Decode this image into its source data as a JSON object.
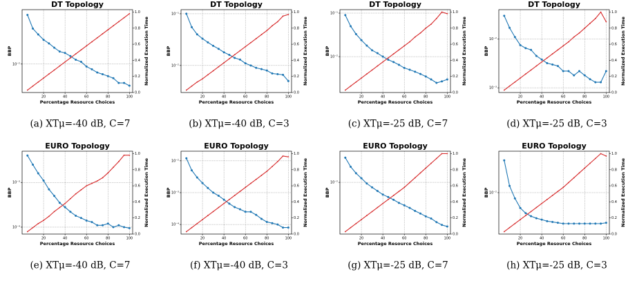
{
  "chart_data": [
    {
      "type": "line",
      "title": "DT Topology",
      "xlabel": "Percentage Resource Choices",
      "ylabel": "BBP",
      "y2label": "Normalized Execution Time",
      "caption": "(a) XTμ=-40 dB, C=7",
      "ylog": true,
      "grid": true,
      "x": [
        5,
        10,
        15,
        20,
        25,
        30,
        35,
        40,
        45,
        50,
        55,
        60,
        65,
        70,
        75,
        80,
        85,
        90,
        95,
        100
      ],
      "xlim": [
        0,
        103
      ],
      "xticks": [
        20,
        40,
        60,
        80,
        100
      ],
      "ylim": [
        0.003,
        0.1
      ],
      "yticks": [
        {
          "value": 0.01,
          "label": "10⁻²"
        }
      ],
      "y2lim": [
        0,
        1.03
      ],
      "y2ticks": [
        {
          "value": 0,
          "label": "0.0"
        },
        {
          "value": 0.2,
          "label": "0.2"
        },
        {
          "value": 0.4,
          "label": "0.4"
        },
        {
          "value": 0.6,
          "label": "0.6"
        },
        {
          "value": 0.8,
          "label": "0.8"
        },
        {
          "value": 1,
          "label": "1.0"
        }
      ],
      "series": [
        {
          "color": "#1f77b4",
          "values": [
            0.08,
            0.045,
            0.035,
            0.028,
            0.024,
            0.02,
            0.017,
            0.016,
            0.014,
            0.012,
            0.011,
            0.009,
            0.008,
            0.007,
            0.0065,
            0.006,
            0.0055,
            0.0045,
            0.0045,
            0.004
          ]
        },
        {
          "color": "#d62728",
          "axis": "y2",
          "values": [
            0.03,
            0.08,
            0.13,
            0.18,
            0.23,
            0.28,
            0.33,
            0.38,
            0.43,
            0.48,
            0.53,
            0.58,
            0.63,
            0.68,
            0.73,
            0.78,
            0.83,
            0.88,
            0.93,
            0.98
          ]
        }
      ]
    },
    {
      "type": "line",
      "title": "DT Topology",
      "xlabel": "Percentage Resource Choices",
      "ylabel": "BBP",
      "y2label": "Normalized Execution Time",
      "caption": "(b) XTμ=-40 dB, C=3",
      "ylog": true,
      "grid": true,
      "x": [
        5,
        10,
        15,
        20,
        25,
        30,
        35,
        40,
        45,
        50,
        55,
        60,
        65,
        70,
        75,
        80,
        85,
        90,
        95,
        100
      ],
      "xlim": [
        0,
        103
      ],
      "xticks": [
        20,
        40,
        60,
        80,
        100
      ],
      "ylim": [
        0.003,
        0.12
      ],
      "yticks": [
        {
          "value": 0.01,
          "label": "10⁻²"
        },
        {
          "value": 0.1,
          "label": "10⁻¹"
        }
      ],
      "y2lim": [
        0,
        1.03
      ],
      "y2ticks": [
        {
          "value": 0,
          "label": "0.0"
        },
        {
          "value": 0.2,
          "label": "0.2"
        },
        {
          "value": 0.4,
          "label": "0.4"
        },
        {
          "value": 0.6,
          "label": "0.6"
        },
        {
          "value": 0.8,
          "label": "0.8"
        },
        {
          "value": 1,
          "label": "1.0"
        }
      ],
      "series": [
        {
          "color": "#1f77b4",
          "values": [
            0.1,
            0.055,
            0.04,
            0.033,
            0.028,
            0.024,
            0.021,
            0.018,
            0.016,
            0.014,
            0.013,
            0.011,
            0.01,
            0.009,
            0.0085,
            0.008,
            0.007,
            0.0068,
            0.0066,
            0.005
          ]
        },
        {
          "color": "#d62728",
          "axis": "y2",
          "values": [
            0.03,
            0.08,
            0.13,
            0.17,
            0.22,
            0.27,
            0.32,
            0.37,
            0.42,
            0.47,
            0.52,
            0.57,
            0.62,
            0.67,
            0.72,
            0.77,
            0.83,
            0.88,
            0.95,
            0.97
          ]
        }
      ]
    },
    {
      "type": "line",
      "title": "DT Topology",
      "xlabel": "Percentage Resource Choices",
      "ylabel": "BBP",
      "y2label": "Normalized Execution Time",
      "caption": "(c) XTμ=-25 dB, C=7",
      "ylog": true,
      "grid": true,
      "x": [
        5,
        10,
        15,
        20,
        25,
        30,
        35,
        40,
        45,
        50,
        55,
        60,
        65,
        70,
        75,
        80,
        85,
        90,
        95,
        100
      ],
      "xlim": [
        0,
        103
      ],
      "xticks": [
        20,
        40,
        60,
        80,
        100
      ],
      "ylim": [
        0.0015,
        0.12
      ],
      "yticks": [
        {
          "value": 0.01,
          "label": "10⁻²"
        },
        {
          "value": 0.1,
          "label": "10⁻¹"
        }
      ],
      "y2lim": [
        0,
        1.03
      ],
      "y2ticks": [
        {
          "value": 0,
          "label": "0.0"
        },
        {
          "value": 0.2,
          "label": "0.2"
        },
        {
          "value": 0.4,
          "label": "0.4"
        },
        {
          "value": 0.6,
          "label": "0.6"
        },
        {
          "value": 0.8,
          "label": "0.8"
        },
        {
          "value": 1,
          "label": "1.0"
        }
      ],
      "series": [
        {
          "color": "#1f77b4",
          "values": [
            0.09,
            0.05,
            0.033,
            0.024,
            0.018,
            0.014,
            0.012,
            0.01,
            0.0085,
            0.0075,
            0.0065,
            0.0055,
            0.005,
            0.0045,
            0.004,
            0.0035,
            0.003,
            0.0025,
            0.0027,
            0.003
          ]
        },
        {
          "color": "#d62728",
          "axis": "y2",
          "values": [
            0.03,
            0.08,
            0.13,
            0.18,
            0.23,
            0.28,
            0.33,
            0.38,
            0.43,
            0.48,
            0.53,
            0.58,
            0.63,
            0.69,
            0.74,
            0.8,
            0.85,
            0.92,
            1.0,
            0.98
          ]
        }
      ]
    },
    {
      "type": "line",
      "title": "DT Topology",
      "xlabel": "Percentage Resource Choices",
      "ylabel": "BBP",
      "y2label": "Normalized Execution Time",
      "caption": "(d) XTμ=-25 dB, C=3",
      "ylog": true,
      "grid": true,
      "x": [
        5,
        10,
        15,
        20,
        25,
        30,
        35,
        40,
        45,
        50,
        55,
        60,
        65,
        70,
        75,
        80,
        85,
        90,
        95,
        100
      ],
      "xlim": [
        0,
        103
      ],
      "xticks": [
        20,
        40,
        60,
        80,
        100
      ],
      "ylim": [
        0.0008,
        0.04
      ],
      "yticks": [
        {
          "value": 0.001,
          "label": "10⁻³"
        },
        {
          "value": 0.01,
          "label": "10⁻²"
        }
      ],
      "y2lim": [
        0,
        1.03
      ],
      "y2ticks": [
        {
          "value": 0,
          "label": "0.0"
        },
        {
          "value": 0.2,
          "label": "0.2"
        },
        {
          "value": 0.4,
          "label": "0.4"
        },
        {
          "value": 0.6,
          "label": "0.6"
        },
        {
          "value": 0.8,
          "label": "0.8"
        },
        {
          "value": 1,
          "label": "1.0"
        }
      ],
      "series": [
        {
          "color": "#1f77b4",
          "values": [
            0.03,
            0.017,
            0.011,
            0.0075,
            0.0065,
            0.006,
            0.0045,
            0.0038,
            0.0032,
            0.003,
            0.0028,
            0.0022,
            0.0022,
            0.0018,
            0.0022,
            0.0018,
            0.0015,
            0.0013,
            0.0013,
            0.0022
          ]
        },
        {
          "color": "#d62728",
          "axis": "y2",
          "values": [
            0.03,
            0.08,
            0.13,
            0.18,
            0.23,
            0.28,
            0.33,
            0.38,
            0.43,
            0.48,
            0.53,
            0.58,
            0.63,
            0.69,
            0.74,
            0.8,
            0.86,
            0.92,
            1.0,
            0.88
          ]
        }
      ]
    },
    {
      "type": "line",
      "title": "EURO Topology",
      "xlabel": "Percentage Resource Choices",
      "ylabel": "BBP",
      "y2label": "Normalized Execution Time",
      "caption": "(e) XTμ=-40 dB, C=7",
      "ylog": true,
      "grid": true,
      "x": [
        5,
        10,
        15,
        20,
        25,
        30,
        35,
        40,
        45,
        50,
        55,
        60,
        65,
        70,
        75,
        80,
        85,
        90,
        95,
        100
      ],
      "xlim": [
        0,
        103
      ],
      "xticks": [
        20,
        40,
        60,
        80,
        100
      ],
      "ylim": [
        7e-05,
        0.005
      ],
      "yticks": [
        {
          "value": 0.0001,
          "label": "10⁻⁴"
        },
        {
          "value": 0.001,
          "label": "10⁻³"
        }
      ],
      "y2lim": [
        0,
        1.03
      ],
      "y2ticks": [
        {
          "value": 0,
          "label": "0.0"
        },
        {
          "value": 0.2,
          "label": "0.2"
        },
        {
          "value": 0.4,
          "label": "0.4"
        },
        {
          "value": 0.6,
          "label": "0.6"
        },
        {
          "value": 0.8,
          "label": "0.8"
        },
        {
          "value": 1,
          "label": "1.0"
        }
      ],
      "series": [
        {
          "color": "#1f77b4",
          "values": [
            0.004,
            0.0025,
            0.0016,
            0.0011,
            0.0007,
            0.0005,
            0.00035,
            0.00028,
            0.00022,
            0.00018,
            0.00016,
            0.00014,
            0.00013,
            0.00011,
            0.00011,
            0.00012,
            0.0001,
            0.00011,
            0.0001,
            9.5e-05
          ]
        },
        {
          "color": "#d62728",
          "axis": "y2",
          "values": [
            0.03,
            0.08,
            0.13,
            0.17,
            0.22,
            0.28,
            0.33,
            0.38,
            0.44,
            0.5,
            0.55,
            0.6,
            0.63,
            0.66,
            0.7,
            0.76,
            0.83,
            0.9,
            0.98,
            0.98
          ]
        }
      ]
    },
    {
      "type": "line",
      "title": "EURO Topology",
      "xlabel": "Percentage Resource Choices",
      "ylabel": "BBP",
      "y2label": "Normalized Execution Time",
      "caption": "(f) XTμ=-40 dB, C=3",
      "ylog": true,
      "grid": true,
      "x": [
        5,
        10,
        15,
        20,
        25,
        30,
        35,
        40,
        45,
        50,
        55,
        60,
        65,
        70,
        75,
        80,
        85,
        90,
        95,
        100
      ],
      "xlim": [
        0,
        103
      ],
      "xticks": [
        20,
        40,
        60,
        80,
        100
      ],
      "ylim": [
        5e-05,
        0.02
      ],
      "yticks": [
        {
          "value": 0.0001,
          "label": "10⁻⁴"
        },
        {
          "value": 0.001,
          "label": "10⁻³"
        },
        {
          "value": 0.01,
          "label": "10⁻²"
        }
      ],
      "y2lim": [
        0,
        1.03
      ],
      "y2ticks": [
        {
          "value": 0,
          "label": "0.0"
        },
        {
          "value": 0.2,
          "label": "0.2"
        },
        {
          "value": 0.4,
          "label": "0.4"
        },
        {
          "value": 0.6,
          "label": "0.6"
        },
        {
          "value": 0.8,
          "label": "0.8"
        },
        {
          "value": 1,
          "label": "1.0"
        }
      ],
      "series": [
        {
          "color": "#1f77b4",
          "values": [
            0.012,
            0.005,
            0.003,
            0.002,
            0.0014,
            0.001,
            0.0008,
            0.0006,
            0.00045,
            0.00035,
            0.0003,
            0.00025,
            0.00025,
            0.0002,
            0.00015,
            0.00012,
            0.00011,
            0.0001,
            8e-05,
            8e-05
          ]
        },
        {
          "color": "#d62728",
          "axis": "y2",
          "values": [
            0.03,
            0.08,
            0.13,
            0.18,
            0.23,
            0.28,
            0.33,
            0.38,
            0.43,
            0.48,
            0.53,
            0.58,
            0.63,
            0.68,
            0.73,
            0.78,
            0.84,
            0.9,
            0.97,
            0.96
          ]
        }
      ]
    },
    {
      "type": "line",
      "title": "EURO Topology",
      "xlabel": "Percentage Resource Choices",
      "ylabel": "BBP",
      "y2label": "Normalized Execution Time",
      "caption": "(g) XTμ=-25 dB, C=7",
      "ylog": true,
      "grid": true,
      "x": [
        5,
        10,
        15,
        20,
        25,
        30,
        35,
        40,
        45,
        50,
        55,
        60,
        65,
        70,
        75,
        80,
        85,
        90,
        95,
        100
      ],
      "xlim": [
        0,
        103
      ],
      "xticks": [
        20,
        40,
        60,
        80,
        100
      ],
      "ylim": [
        0.001,
        0.04
      ],
      "yticks": [
        {
          "value": 0.01,
          "label": "10⁻²"
        }
      ],
      "y2lim": [
        0,
        1.03
      ],
      "y2ticks": [
        {
          "value": 0,
          "label": "0.0"
        },
        {
          "value": 0.2,
          "label": "0.2"
        },
        {
          "value": 0.4,
          "label": "0.4"
        },
        {
          "value": 0.6,
          "label": "0.6"
        },
        {
          "value": 0.8,
          "label": "0.8"
        },
        {
          "value": 1,
          "label": "1.0"
        }
      ],
      "series": [
        {
          "color": "#1f77b4",
          "values": [
            0.03,
            0.02,
            0.015,
            0.012,
            0.0095,
            0.008,
            0.0068,
            0.0058,
            0.0052,
            0.0046,
            0.004,
            0.0036,
            0.0032,
            0.0028,
            0.0025,
            0.0022,
            0.002,
            0.0017,
            0.0015,
            0.0014
          ]
        },
        {
          "color": "#d62728",
          "axis": "y2",
          "values": [
            0.03,
            0.08,
            0.13,
            0.18,
            0.23,
            0.28,
            0.33,
            0.38,
            0.43,
            0.48,
            0.53,
            0.58,
            0.64,
            0.7,
            0.76,
            0.82,
            0.88,
            0.94,
            1.0,
            1.0
          ]
        }
      ]
    },
    {
      "type": "line",
      "title": "EURO Topology",
      "xlabel": "Percentage Resource Choices",
      "ylabel": "BBP",
      "y2label": "Normalized Execution Time",
      "caption": "(h) XTμ=-25 dB, C=3",
      "ylog": true,
      "grid": true,
      "x": [
        5,
        10,
        15,
        20,
        25,
        30,
        35,
        40,
        45,
        50,
        55,
        60,
        65,
        70,
        75,
        80,
        85,
        90,
        95,
        100
      ],
      "xlim": [
        0,
        103
      ],
      "xticks": [
        20,
        40,
        60,
        80,
        100
      ],
      "ylim": [
        0.002,
        0.05
      ],
      "yticks": [
        {
          "value": 0.01,
          "label": "10⁻²"
        }
      ],
      "y2lim": [
        0,
        1.03
      ],
      "y2ticks": [
        {
          "value": 0,
          "label": "0.0"
        },
        {
          "value": 0.2,
          "label": "0.2"
        },
        {
          "value": 0.4,
          "label": "0.4"
        },
        {
          "value": 0.6,
          "label": "0.6"
        },
        {
          "value": 0.8,
          "label": "0.8"
        },
        {
          "value": 1,
          "label": "1.0"
        }
      ],
      "series": [
        {
          "color": "#1f77b4",
          "values": [
            0.035,
            0.013,
            0.008,
            0.0055,
            0.0045,
            0.004,
            0.0037,
            0.0035,
            0.0033,
            0.0032,
            0.0031,
            0.003,
            0.003,
            0.003,
            0.003,
            0.003,
            0.003,
            0.003,
            0.003,
            0.0031
          ]
        },
        {
          "color": "#d62728",
          "axis": "y2",
          "values": [
            0.03,
            0.08,
            0.13,
            0.18,
            0.23,
            0.28,
            0.33,
            0.38,
            0.43,
            0.48,
            0.53,
            0.58,
            0.64,
            0.7,
            0.76,
            0.82,
            0.88,
            0.94,
            1.0,
            0.97
          ]
        }
      ]
    }
  ]
}
